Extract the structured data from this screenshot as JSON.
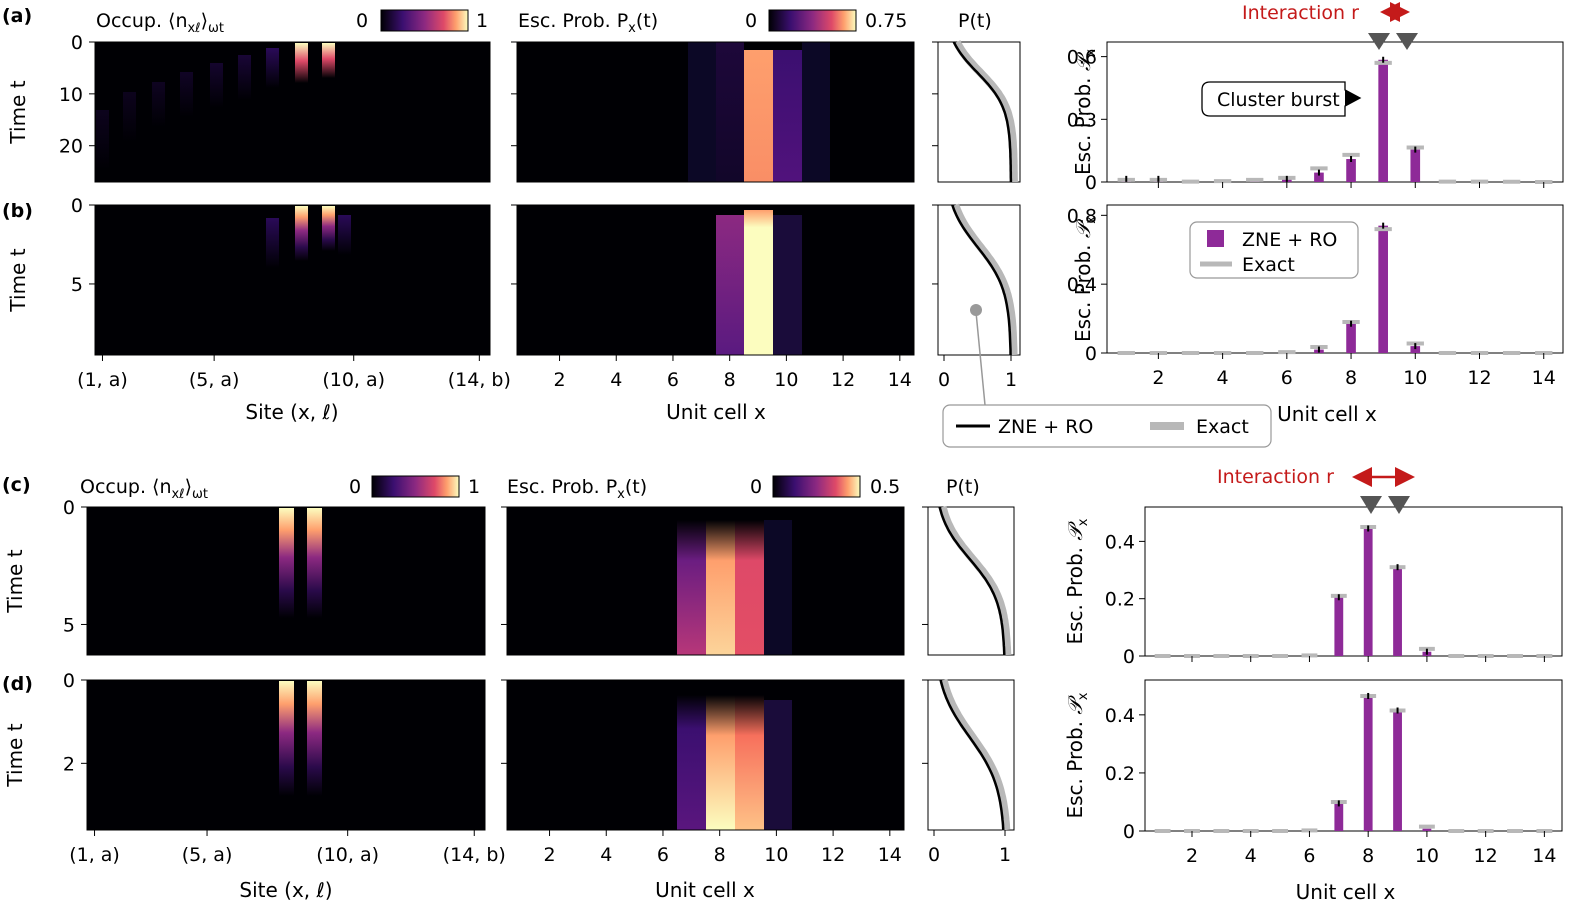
{
  "colors": {
    "bar": "#8e2a98",
    "exact": "#b8b8b8",
    "annot": "#c41a1a",
    "line": "#000000",
    "marker": "#555555"
  },
  "common": {
    "occ_title_pre": "Occup. ⟨n",
    "occ_title_sub": "xℓ",
    "occ_title_post": "⟩",
    "occ_title_sub2": "ωt",
    "esc_title_pre": "Esc. Prob. P",
    "esc_title_sub": "x",
    "esc_title_post": "(t)",
    "pt_title": "P(t)",
    "ylabel_time": "Time t",
    "ylabel_bar_pre": "Esc. Prob. ",
    "ylabel_bar_sym": "𝒫",
    "ylabel_bar_sub": "x",
    "xlabel_site": "Site (x, ℓ)",
    "xlabel_unit": "Unit cell x",
    "site_ticks": [
      "(1, a)",
      "(5, a)",
      "(10, a)",
      "(14, b)"
    ],
    "unit_ticks": [
      "2",
      "4",
      "6",
      "8",
      "10",
      "12",
      "14"
    ],
    "pt_ticks": [
      "0",
      "1"
    ],
    "interaction_label": "Interaction r",
    "cluster_burst": "Cluster burst",
    "legend_zne": "ZNE + RO",
    "legend_exact": "Exact"
  },
  "chart_data": [
    {
      "panel": "(a)",
      "type": "heatmap+line+bar",
      "occ_cbar": [
        "0",
        "1"
      ],
      "esc_cbar": [
        "0",
        "0.75"
      ],
      "time_ticks": [
        "0",
        "10",
        "20"
      ],
      "bar": {
        "type": "bar",
        "x": [
          1,
          2,
          3,
          4,
          5,
          6,
          7,
          8,
          9,
          10,
          11,
          12,
          13,
          14
        ],
        "zne": [
          0.015,
          0.015,
          0.002,
          0.005,
          0.01,
          0.015,
          0.045,
          0.11,
          0.585,
          0.155,
          0.003,
          0.002,
          0.002,
          0.0
        ],
        "exact": [
          0.01,
          0.01,
          0.002,
          0.004,
          0.01,
          0.02,
          0.065,
          0.13,
          0.57,
          0.165,
          0.002,
          0.002,
          0.001,
          0.0
        ],
        "ylim": [
          0,
          0.67
        ],
        "yticks": [
          "0",
          "0.3",
          "0.6"
        ]
      }
    },
    {
      "panel": "(b)",
      "type": "heatmap+line+bar",
      "time_ticks": [
        "0",
        "5"
      ],
      "bar": {
        "type": "bar",
        "x": [
          1,
          2,
          3,
          4,
          5,
          6,
          7,
          8,
          9,
          10,
          11,
          12,
          13,
          14
        ],
        "zne": [
          0,
          0,
          0,
          0,
          0,
          0.003,
          0.02,
          0.17,
          0.74,
          0.04,
          0,
          0,
          0,
          0
        ],
        "exact": [
          0,
          0,
          0,
          0,
          0,
          0.005,
          0.035,
          0.18,
          0.72,
          0.055,
          0,
          0,
          0,
          0
        ],
        "ylim": [
          0,
          0.86
        ],
        "yticks": [
          "0",
          "0.4",
          "0.8"
        ]
      }
    },
    {
      "panel": "(c)",
      "type": "heatmap+line+bar",
      "occ_cbar": [
        "0",
        "1"
      ],
      "esc_cbar": [
        "0",
        "0.5"
      ],
      "time_ticks": [
        "0",
        "5"
      ],
      "bar": {
        "type": "bar",
        "x": [
          1,
          2,
          3,
          4,
          5,
          6,
          7,
          8,
          9,
          10,
          11,
          12,
          13,
          14
        ],
        "zne": [
          0,
          0,
          0,
          0,
          0,
          0.002,
          0.205,
          0.445,
          0.31,
          0.015,
          0,
          0,
          0,
          0
        ],
        "exact": [
          0,
          0,
          0,
          0,
          0,
          0.002,
          0.21,
          0.45,
          0.31,
          0.025,
          0,
          0,
          0,
          0
        ],
        "ylim": [
          0,
          0.52
        ],
        "yticks": [
          "0",
          "0.2",
          "0.4"
        ]
      }
    },
    {
      "panel": "(d)",
      "type": "heatmap+line+bar",
      "time_ticks": [
        "0",
        "2"
      ],
      "bar": {
        "type": "bar",
        "x": [
          1,
          2,
          3,
          4,
          5,
          6,
          7,
          8,
          9,
          10,
          11,
          12,
          13,
          14
        ],
        "zne": [
          0,
          0,
          0,
          0,
          0,
          0.002,
          0.095,
          0.465,
          0.415,
          0.008,
          0,
          0,
          0,
          0
        ],
        "exact": [
          0,
          0,
          0,
          0,
          0,
          0.002,
          0.1,
          0.465,
          0.415,
          0.015,
          0,
          0,
          0,
          0
        ],
        "ylim": [
          0,
          0.52
        ],
        "yticks": [
          "0",
          "0.2",
          "0.4"
        ]
      }
    }
  ]
}
